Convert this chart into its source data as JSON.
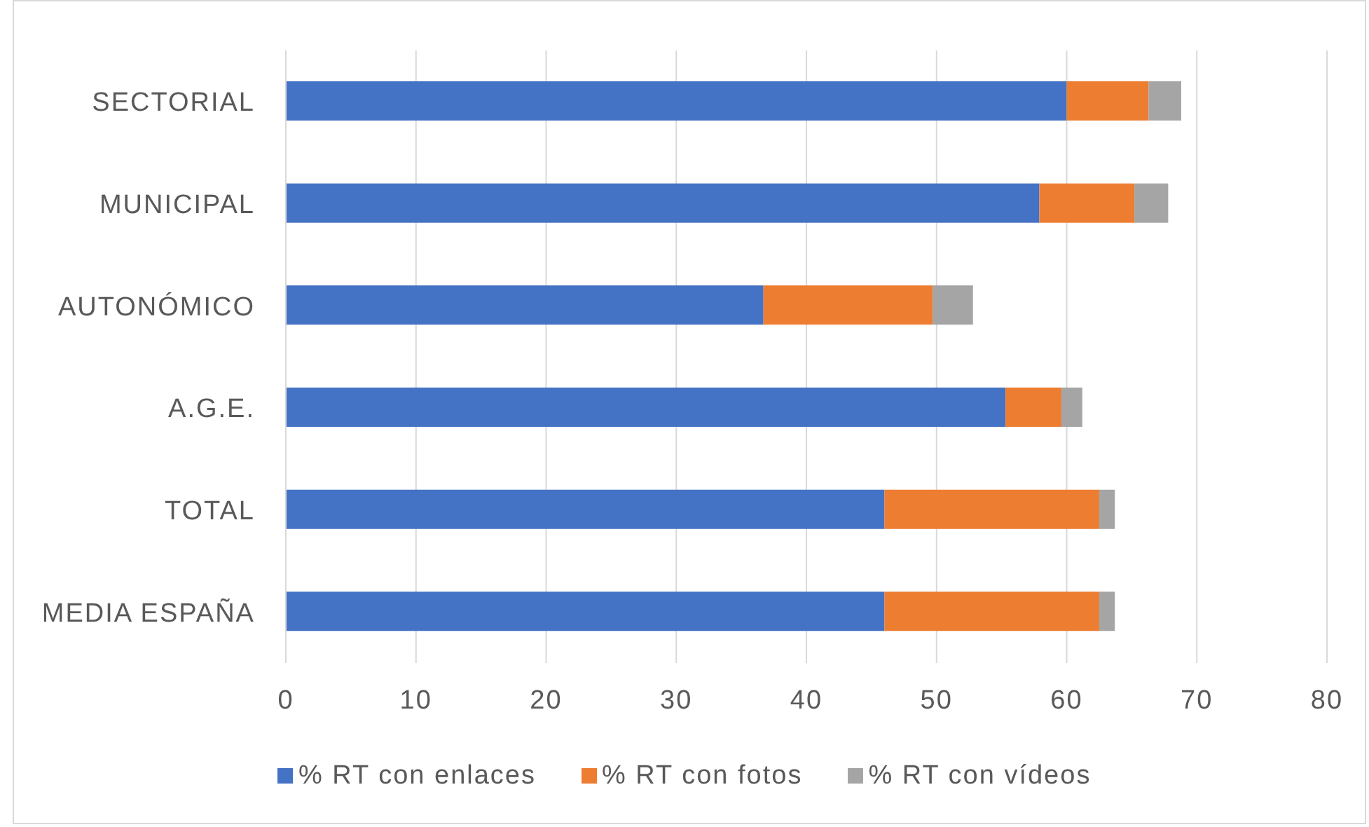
{
  "chart_data": {
    "type": "bar",
    "orientation": "horizontal",
    "stacked": true,
    "categories": [
      "SECTORIAL",
      "MUNICIPAL",
      "AUTONÓMICO",
      "A.G.E.",
      "TOTAL",
      "MEDIA ESPAÑA"
    ],
    "series": [
      {
        "name": "% RT con enlaces",
        "color": "#4472c4",
        "values": [
          60.0,
          57.9,
          36.7,
          55.3,
          46.0,
          46.0
        ]
      },
      {
        "name": "% RT con fotos",
        "color": "#ed7d31",
        "values": [
          6.3,
          7.3,
          13.0,
          4.3,
          16.5,
          16.5
        ]
      },
      {
        "name": "% RT con vídeos",
        "color": "#a5a5a5",
        "values": [
          2.5,
          2.6,
          3.1,
          1.6,
          1.2,
          1.2
        ]
      }
    ],
    "xlim": [
      0,
      80
    ],
    "xticks": [
      0,
      10,
      20,
      30,
      40,
      50,
      60,
      70,
      80
    ],
    "grid": "x",
    "legend": "bottom"
  }
}
